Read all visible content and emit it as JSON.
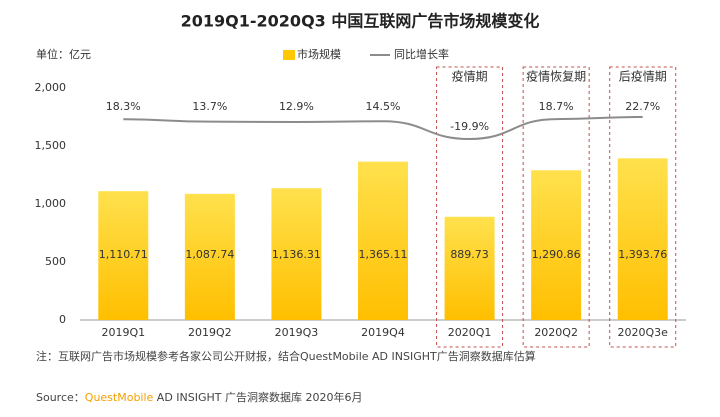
{
  "chart_data": {
    "type": "bar",
    "title": "2019Q1-2020Q3 中国互联网广告市场规模变化",
    "unit_label": "单位：亿元",
    "categories": [
      "2019Q1",
      "2019Q2",
      "2019Q3",
      "2019Q4",
      "2020Q1",
      "2020Q2",
      "2020Q3e"
    ],
    "series": [
      {
        "name": "市场规模",
        "type": "bar",
        "color": "#ffc800",
        "values": [
          1110.71,
          1087.74,
          1136.31,
          1365.11,
          889.73,
          1290.86,
          1393.76
        ],
        "value_labels": [
          "1,110.71",
          "1,087.74",
          "1,136.31",
          "1,365.11",
          "889.73",
          "1,290.86",
          "1,393.76"
        ]
      },
      {
        "name": "同比增长率",
        "type": "line",
        "color": "#8c8c8c",
        "values": [
          18.3,
          13.7,
          12.9,
          14.5,
          -19.9,
          18.7,
          22.7
        ],
        "value_labels": [
          "18.3%",
          "13.7%",
          "12.9%",
          "14.5%",
          "-19.9%",
          "18.7%",
          "22.7%"
        ]
      }
    ],
    "ylim": [
      0,
      2000
    ],
    "yticks": [
      0,
      500,
      {
        "value": 1000,
        "label": "1,000"
      },
      {
        "value": 1500,
        "label": "1,500"
      },
      {
        "value": 2000,
        "label": "2,000"
      }
    ],
    "grid": false,
    "phases": [
      "疫情期",
      "疫情恢复期",
      "后疫情期"
    ],
    "note": "注：互联网广告市场规模参考各家公司公开财报，结合QuestMobile AD INSIGHT广告洞察数据库估算",
    "source": [
      "Source：",
      "QuestMobile",
      " AD INSIGHT 广告洞察数据库 2020年6月"
    ]
  }
}
